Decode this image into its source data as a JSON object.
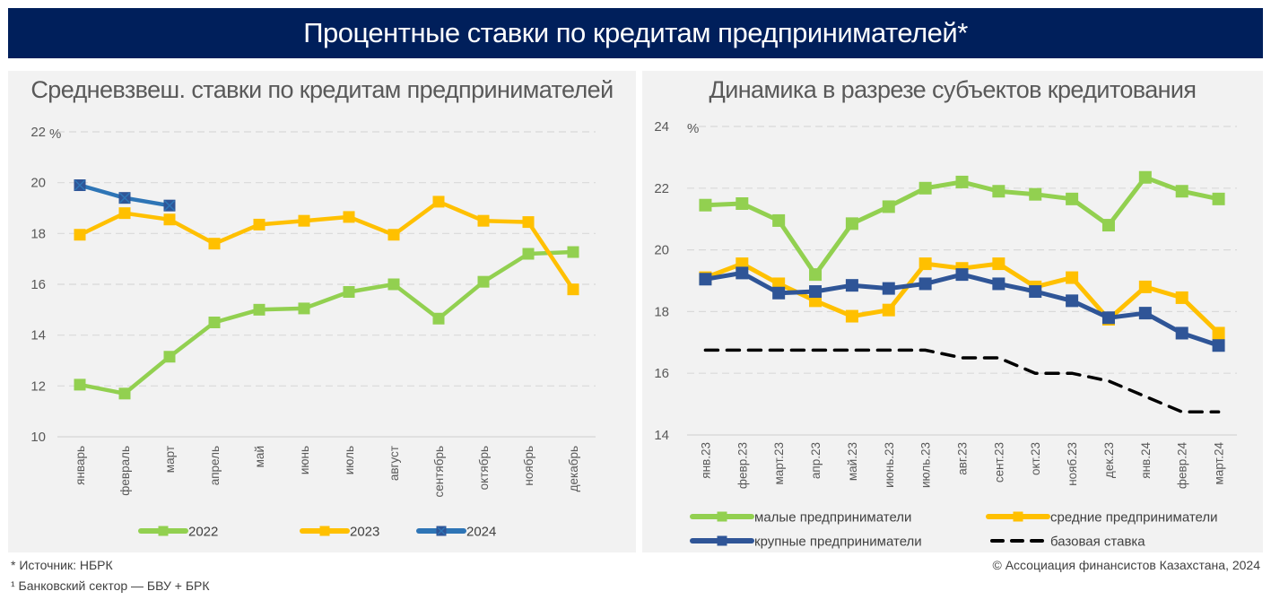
{
  "header": {
    "title": "Процентные ставки по кредитам предпринимателей*"
  },
  "colors": {
    "banner": "#001f5b",
    "green": "#92d050",
    "yellow": "#ffc000",
    "blue_light": "#2e75b6",
    "blue_dark": "#2f5597",
    "base": "#000000",
    "panel_bg": "#f2f2f2"
  },
  "chart_data": [
    {
      "type": "line",
      "title": "Средневзвеш. ставки по кредитам предпринимателей",
      "ylabel": "%",
      "ylim": [
        10,
        22
      ],
      "yticks": [
        10,
        12,
        14,
        16,
        18,
        20,
        22
      ],
      "grid": true,
      "legend_position": "bottom",
      "categories": [
        "январь",
        "февраль",
        "март",
        "апрель",
        "май",
        "июнь",
        "июль",
        "август",
        "сентябрь",
        "октябрь",
        "ноябрь",
        "декабрь"
      ],
      "series": [
        {
          "name": "2022",
          "color": "#92d050",
          "marker": "square",
          "values": [
            12.05,
            11.7,
            13.15,
            14.5,
            15.0,
            15.05,
            15.7,
            16.0,
            14.65,
            16.1,
            17.2,
            17.27
          ]
        },
        {
          "name": "2023",
          "color": "#ffc000",
          "marker": "square",
          "values": [
            17.95,
            18.8,
            18.55,
            17.6,
            18.35,
            18.5,
            18.65,
            17.95,
            19.25,
            18.5,
            18.45,
            15.8
          ]
        },
        {
          "name": "2024",
          "color": "#2e75b6",
          "marker": "x-square",
          "values": [
            19.9,
            19.4,
            19.1,
            null,
            null,
            null,
            null,
            null,
            null,
            null,
            null,
            null
          ]
        }
      ]
    },
    {
      "type": "line",
      "title": "Динамика в разрезе субъектов кредитования",
      "ylabel": "%",
      "ylim": [
        14,
        24
      ],
      "yticks": [
        14,
        16,
        18,
        20,
        22,
        24
      ],
      "grid": true,
      "legend_position": "bottom",
      "categories": [
        "янв.23",
        "февр.23",
        "март.23",
        "апр.23",
        "май.23",
        "июнь.23",
        "июль.23",
        "авг.23",
        "сент.23",
        "окт.23",
        "нояб.23",
        "дек.23",
        "янв.24",
        "февр.24",
        "март.24"
      ],
      "series": [
        {
          "name": "малые предприниматели",
          "color": "#92d050",
          "marker": "square",
          "dashed": false,
          "values": [
            21.45,
            21.5,
            20.95,
            19.2,
            20.85,
            21.4,
            22.0,
            22.2,
            21.9,
            21.8,
            21.65,
            20.8,
            22.35,
            21.9,
            21.65
          ]
        },
        {
          "name": "средние предприниматели",
          "color": "#ffc000",
          "marker": "square",
          "dashed": false,
          "values": [
            19.1,
            19.55,
            18.9,
            18.35,
            17.85,
            18.05,
            19.55,
            19.4,
            19.55,
            18.8,
            19.1,
            17.75,
            18.8,
            18.45,
            17.3
          ]
        },
        {
          "name": "крупные предприниматели",
          "color": "#2f5597",
          "marker": "square",
          "dashed": false,
          "values": [
            19.05,
            19.25,
            18.6,
            18.65,
            18.85,
            18.75,
            18.9,
            19.2,
            18.9,
            18.65,
            18.35,
            17.8,
            17.95,
            17.3,
            16.9
          ]
        },
        {
          "name": "базовая ставка",
          "color": "#000000",
          "marker": "none",
          "dashed": true,
          "values": [
            16.75,
            16.75,
            16.75,
            16.75,
            16.75,
            16.75,
            16.75,
            16.5,
            16.5,
            16.0,
            16.0,
            15.75,
            15.25,
            14.75,
            14.75
          ]
        }
      ]
    }
  ],
  "footer": {
    "source": "* Источник: НБРК",
    "note": "¹ Банковский сектор — БВУ + БРК",
    "copyright": "© Ассоциация финансистов Казахстана, 2024"
  }
}
